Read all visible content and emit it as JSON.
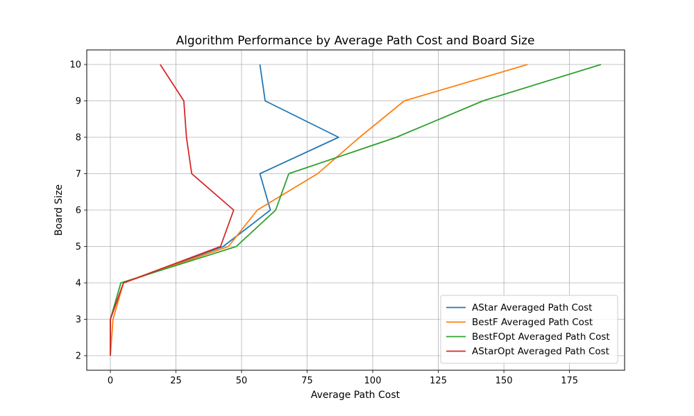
{
  "chart_data": {
    "type": "line",
    "title": "Algorithm Performance by Average Path Cost and Board Size",
    "xlabel": "Average Path Cost",
    "ylabel": "Board Size",
    "xlim": [
      -9,
      196
    ],
    "ylim": [
      1.6,
      10.4
    ],
    "xticks": [
      0,
      25,
      50,
      75,
      100,
      125,
      150,
      175
    ],
    "yticks": [
      2,
      3,
      4,
      5,
      6,
      7,
      8,
      9,
      10
    ],
    "grid": true,
    "legend_position": "lower-right",
    "series": [
      {
        "name": "AStar Averaged Path Cost",
        "color": "#1f77b4",
        "points": [
          [
            0,
            2
          ],
          [
            0,
            3
          ],
          [
            5,
            4
          ],
          [
            43,
            5
          ],
          [
            61,
            6
          ],
          [
            57,
            7
          ],
          [
            87,
            8
          ],
          [
            59,
            9
          ],
          [
            57,
            10
          ]
        ]
      },
      {
        "name": "BestF Averaged Path Cost",
        "color": "#ff7f0e",
        "points": [
          [
            0,
            2
          ],
          [
            1,
            3
          ],
          [
            5,
            4
          ],
          [
            45,
            5
          ],
          [
            56,
            6
          ],
          [
            79,
            7
          ],
          [
            95,
            8
          ],
          [
            112,
            9
          ],
          [
            159,
            10
          ]
        ]
      },
      {
        "name": "BestFOpt Averaged Path Cost",
        "color": "#2ca02c",
        "points": [
          [
            0,
            2
          ],
          [
            0,
            3
          ],
          [
            4,
            4
          ],
          [
            48,
            5
          ],
          [
            63,
            6
          ],
          [
            68,
            7
          ],
          [
            109,
            8
          ],
          [
            142,
            9
          ],
          [
            187,
            10
          ]
        ]
      },
      {
        "name": "AStarOpt Averaged Path Cost",
        "color": "#d62728",
        "points": [
          [
            0,
            2
          ],
          [
            0,
            3
          ],
          [
            5,
            4
          ],
          [
            42,
            5
          ],
          [
            47,
            6
          ],
          [
            31,
            7
          ],
          [
            29,
            8
          ],
          [
            28,
            9
          ],
          [
            19,
            10
          ]
        ]
      }
    ]
  }
}
